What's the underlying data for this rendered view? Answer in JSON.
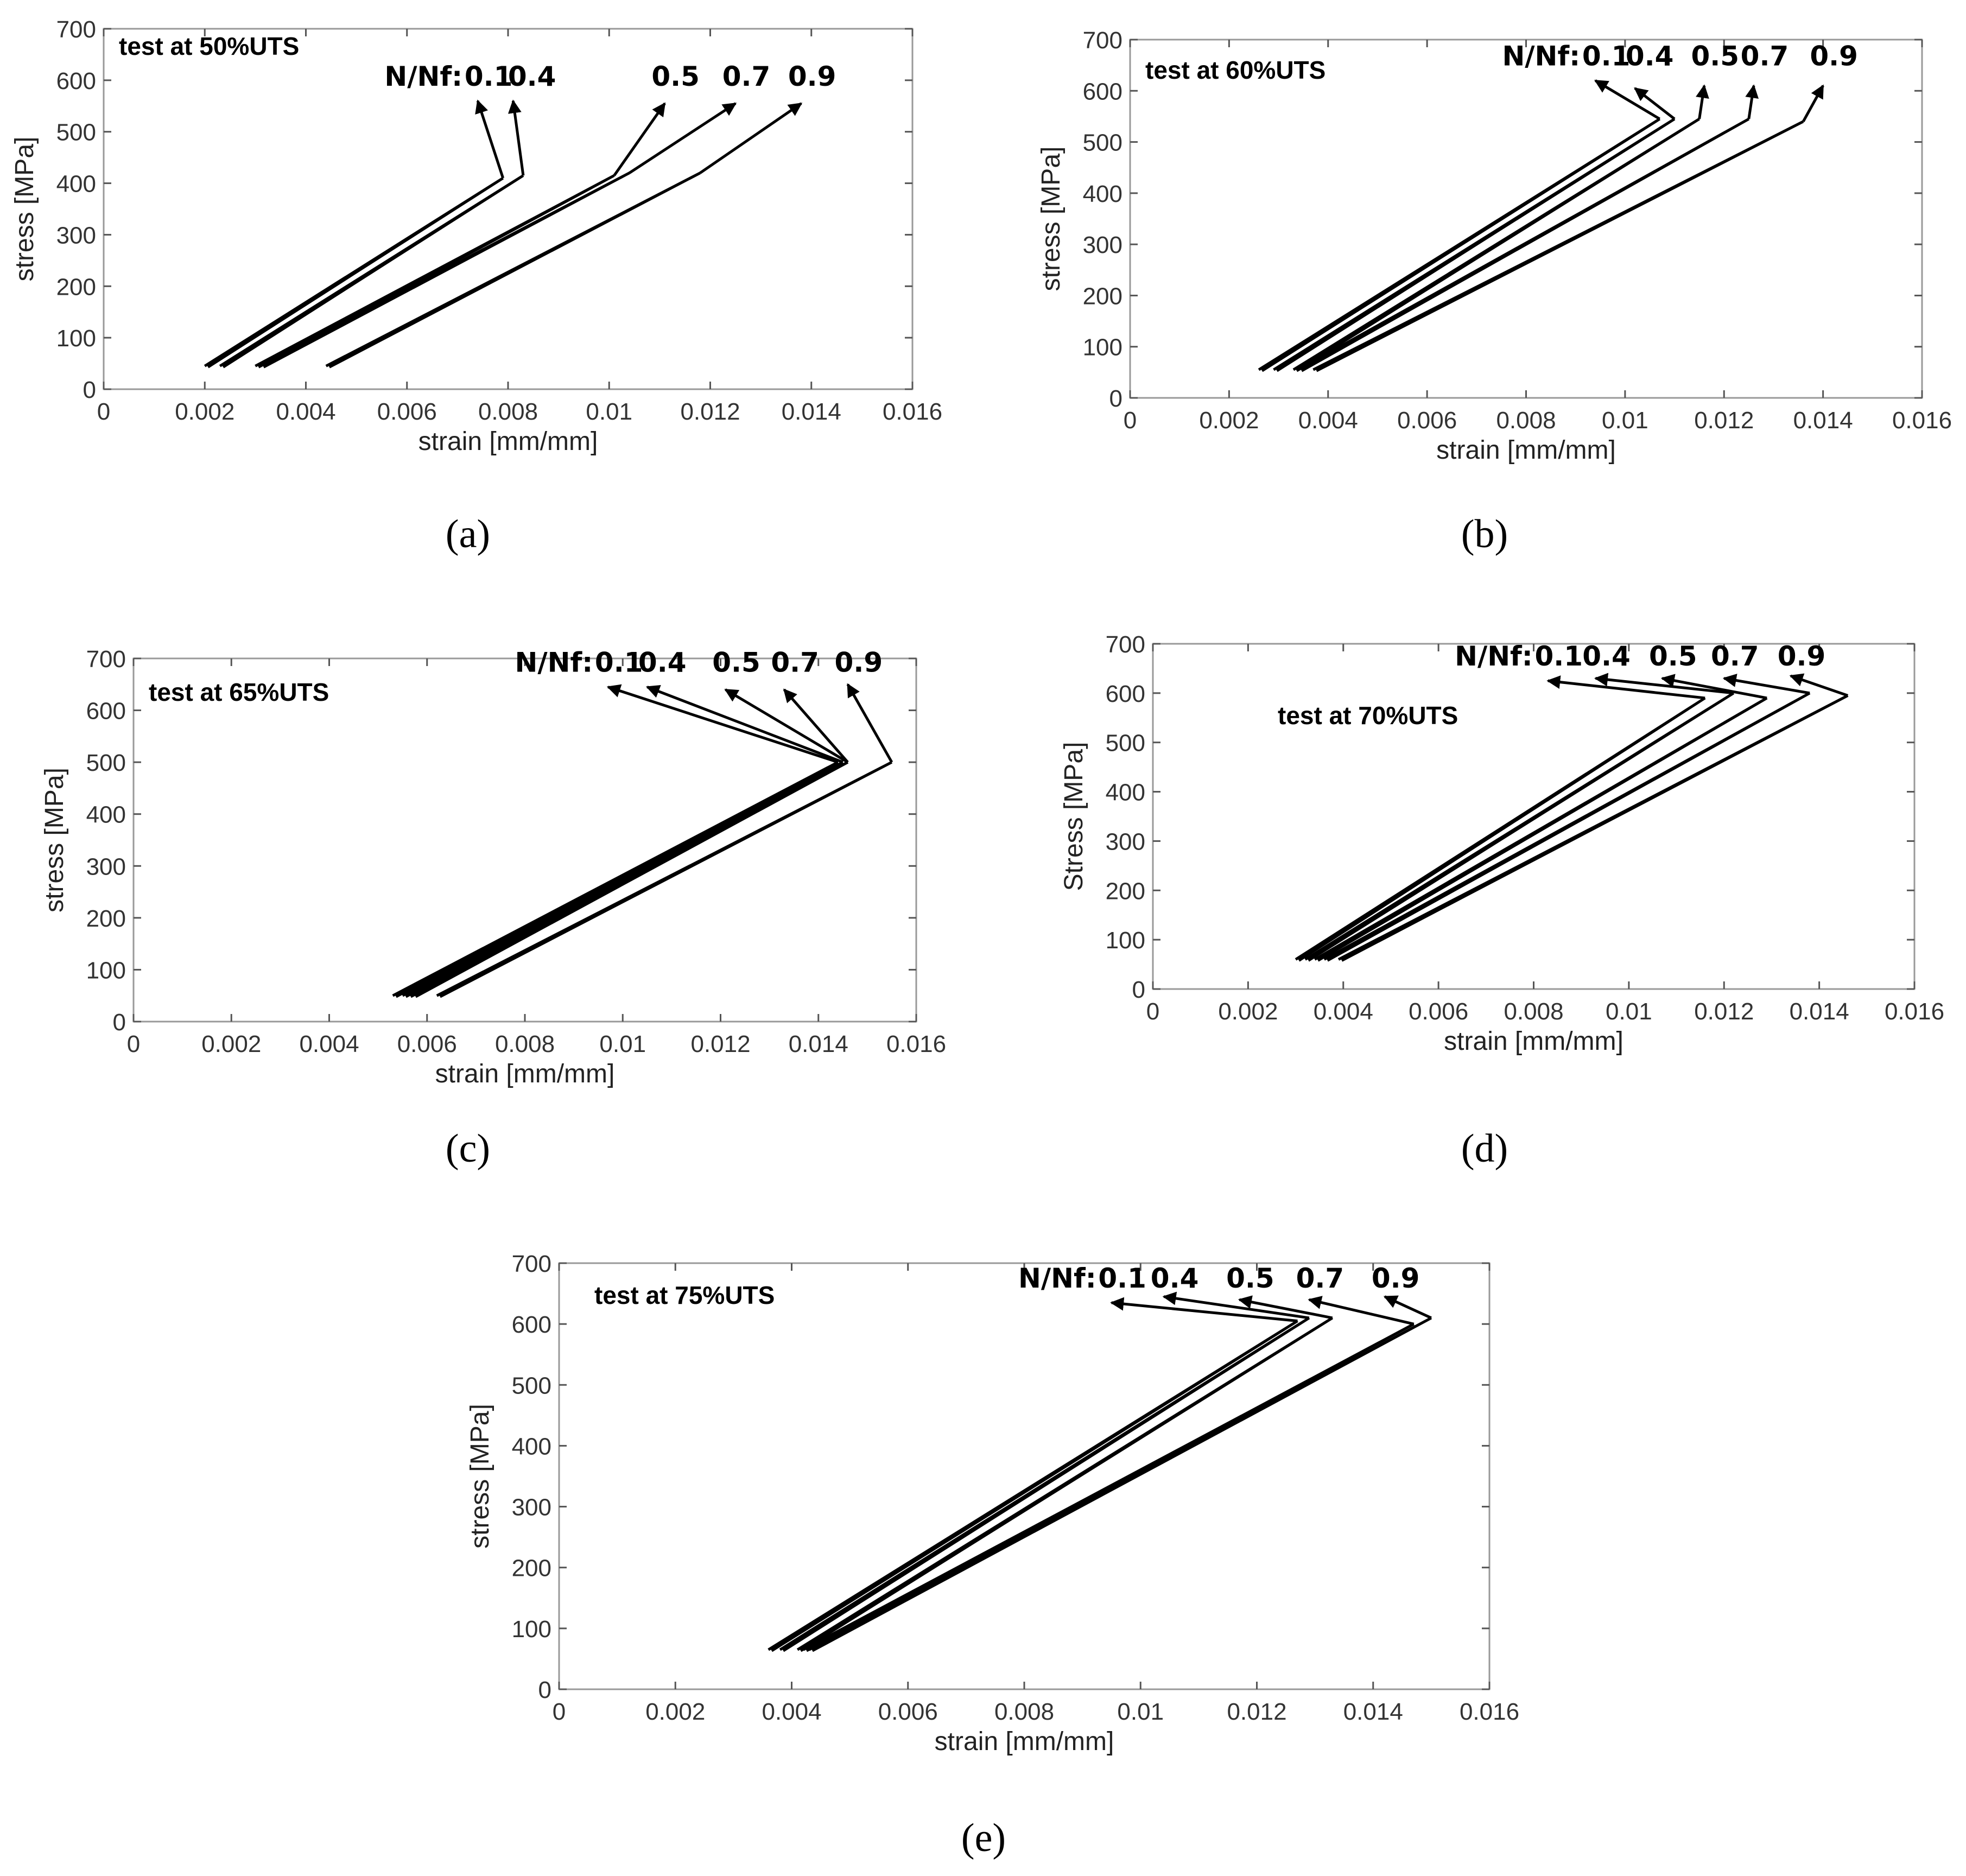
{
  "figure": {
    "panels": [
      "a",
      "b",
      "c",
      "d",
      "e"
    ]
  },
  "chart_data": [
    {
      "id": "a",
      "type": "line",
      "panel_label": "(a)",
      "annotation": "test at 50%UTS",
      "legend_prefix": "N/Nf:",
      "series_labels": [
        "0.1",
        "0.4",
        "0.5",
        "0.7",
        "0.9"
      ],
      "xlabel": "strain [mm/mm]",
      "ylabel": "stress [MPa]",
      "xlim": [
        0,
        0.016
      ],
      "ylim": [
        0,
        700
      ],
      "xticks": [
        "0",
        "0.002",
        "0.004",
        "0.006",
        "0.008",
        "0.01",
        "0.012",
        "0.014",
        "0.016"
      ],
      "yticks": [
        "0",
        "100",
        "200",
        "300",
        "400",
        "500",
        "600",
        "700"
      ],
      "series": [
        {
          "name": "0.1",
          "min_point": [
            0.002,
            45
          ],
          "peak_point": [
            0.0079,
            410
          ],
          "label_point": [
            0.0074,
            560
          ]
        },
        {
          "name": "0.4",
          "min_point": [
            0.0023,
            45
          ],
          "peak_point": [
            0.0083,
            415
          ],
          "label_point": [
            0.0081,
            560
          ]
        },
        {
          "name": "0.5",
          "min_point": [
            0.003,
            45
          ],
          "peak_point": [
            0.0101,
            415
          ],
          "label_point": [
            0.0111,
            555
          ]
        },
        {
          "name": "0.7",
          "min_point": [
            0.0031,
            45
          ],
          "peak_point": [
            0.0104,
            420
          ],
          "label_point": [
            0.0125,
            555
          ]
        },
        {
          "name": "0.9",
          "min_point": [
            0.0044,
            45
          ],
          "peak_point": [
            0.0118,
            420
          ],
          "label_point": [
            0.0138,
            555
          ]
        }
      ]
    },
    {
      "id": "b",
      "type": "line",
      "panel_label": "(b)",
      "annotation": "test at 60%UTS",
      "legend_prefix": "N/Nf:",
      "series_labels": [
        "0.1",
        "0.4",
        "0.5",
        "0.7",
        "0.9"
      ],
      "xlabel": "strain [mm/mm]",
      "ylabel": "stress [MPa]",
      "xlim": [
        0,
        0.016
      ],
      "ylim": [
        0,
        700
      ],
      "xticks": [
        "0",
        "0.002",
        "0.004",
        "0.006",
        "0.008",
        "0.01",
        "0.012",
        "0.014",
        "0.016"
      ],
      "yticks": [
        "0",
        "100",
        "200",
        "300",
        "400",
        "500",
        "600",
        "700"
      ],
      "series": [
        {
          "name": "0.1",
          "min_point": [
            0.0026,
            55
          ],
          "peak_point": [
            0.0107,
            545
          ],
          "label_point": [
            0.0094,
            620
          ]
        },
        {
          "name": "0.4",
          "min_point": [
            0.0029,
            55
          ],
          "peak_point": [
            0.011,
            545
          ],
          "label_point": [
            0.0102,
            605
          ]
        },
        {
          "name": "0.5",
          "min_point": [
            0.0033,
            55
          ],
          "peak_point": [
            0.0115,
            545
          ],
          "label_point": [
            0.0116,
            610
          ]
        },
        {
          "name": "0.7",
          "min_point": [
            0.0034,
            55
          ],
          "peak_point": [
            0.0125,
            545
          ],
          "label_point": [
            0.0126,
            610
          ]
        },
        {
          "name": "0.9",
          "min_point": [
            0.0037,
            55
          ],
          "peak_point": [
            0.0136,
            540
          ],
          "label_point": [
            0.014,
            610
          ]
        }
      ]
    },
    {
      "id": "c",
      "type": "line",
      "panel_label": "(c)",
      "annotation": "test at 65%UTS",
      "legend_prefix": "N/Nf:",
      "series_labels": [
        "0.1",
        "0.4",
        "0.5",
        "0.7",
        "0.9"
      ],
      "xlabel": "strain [mm/mm]",
      "ylabel": "stress [MPa]",
      "xlim": [
        0,
        0.016
      ],
      "ylim": [
        0,
        700
      ],
      "xticks": [
        "0",
        "0.002",
        "0.004",
        "0.006",
        "0.008",
        "0.01",
        "0.012",
        "0.014",
        "0.016"
      ],
      "yticks": [
        "0",
        "100",
        "200",
        "300",
        "400",
        "500",
        "600",
        "700"
      ],
      "series": [
        {
          "name": "0.1",
          "min_point": [
            0.0053,
            50
          ],
          "peak_point": [
            0.0144,
            500
          ],
          "label_point": [
            0.0097,
            645
          ]
        },
        {
          "name": "0.4",
          "min_point": [
            0.0055,
            50
          ],
          "peak_point": [
            0.0145,
            500
          ],
          "label_point": [
            0.0105,
            645
          ]
        },
        {
          "name": "0.5",
          "min_point": [
            0.0056,
            50
          ],
          "peak_point": [
            0.0146,
            500
          ],
          "label_point": [
            0.0121,
            640
          ]
        },
        {
          "name": "0.7",
          "min_point": [
            0.0057,
            50
          ],
          "peak_point": [
            0.0146,
            500
          ],
          "label_point": [
            0.0133,
            640
          ]
        },
        {
          "name": "0.9",
          "min_point": [
            0.0062,
            50
          ],
          "peak_point": [
            0.0155,
            500
          ],
          "label_point": [
            0.0146,
            650
          ]
        }
      ]
    },
    {
      "id": "d",
      "type": "line",
      "panel_label": "(d)",
      "annotation": "test at 70%UTS",
      "legend_prefix": "N/Nf:",
      "series_labels": [
        "0.1",
        "0.4",
        "0.5",
        "0.7",
        "0.9"
      ],
      "xlabel": "strain [mm/mm]",
      "ylabel": "Stress [MPa]",
      "xlim": [
        0,
        0.016
      ],
      "ylim": [
        0,
        700
      ],
      "xticks": [
        "0",
        "0.002",
        "0.004",
        "0.006",
        "0.008",
        "0.01",
        "0.012",
        "0.014",
        "0.016"
      ],
      "yticks": [
        "0",
        "100",
        "200",
        "300",
        "400",
        "500",
        "600",
        "700"
      ],
      "series": [
        {
          "name": "0.1",
          "min_point": [
            0.003,
            60
          ],
          "peak_point": [
            0.0116,
            590
          ],
          "label_point": [
            0.0083,
            625
          ]
        },
        {
          "name": "0.4",
          "min_point": [
            0.0032,
            60
          ],
          "peak_point": [
            0.0122,
            600
          ],
          "label_point": [
            0.0093,
            630
          ]
        },
        {
          "name": "0.5",
          "min_point": [
            0.0034,
            60
          ],
          "peak_point": [
            0.0129,
            590
          ],
          "label_point": [
            0.0107,
            630
          ]
        },
        {
          "name": "0.7",
          "min_point": [
            0.0036,
            60
          ],
          "peak_point": [
            0.0138,
            600
          ],
          "label_point": [
            0.012,
            630
          ]
        },
        {
          "name": "0.9",
          "min_point": [
            0.0039,
            60
          ],
          "peak_point": [
            0.0146,
            595
          ],
          "label_point": [
            0.0134,
            635
          ]
        }
      ]
    },
    {
      "id": "e",
      "type": "line",
      "panel_label": "(e)",
      "annotation": "test at 75%UTS",
      "legend_prefix": "N/Nf:",
      "series_labels": [
        "0.1",
        "0.4",
        "0.5",
        "0.7",
        "0.9"
      ],
      "xlabel": "strain [mm/mm]",
      "ylabel": "stress [MPa]",
      "xlim": [
        0,
        0.016
      ],
      "ylim": [
        0,
        700
      ],
      "xticks": [
        "0",
        "0.002",
        "0.004",
        "0.006",
        "0.008",
        "0.01",
        "0.012",
        "0.014",
        "0.016"
      ],
      "yticks": [
        "0",
        "100",
        "200",
        "300",
        "400",
        "500",
        "600",
        "700"
      ],
      "series": [
        {
          "name": "0.1",
          "min_point": [
            0.0036,
            65
          ],
          "peak_point": [
            0.0127,
            605
          ],
          "label_point": [
            0.0095,
            635
          ]
        },
        {
          "name": "0.4",
          "min_point": [
            0.0038,
            65
          ],
          "peak_point": [
            0.0129,
            610
          ],
          "label_point": [
            0.0104,
            645
          ]
        },
        {
          "name": "0.5",
          "min_point": [
            0.0041,
            65
          ],
          "peak_point": [
            0.0133,
            610
          ],
          "label_point": [
            0.0117,
            640
          ]
        },
        {
          "name": "0.7",
          "min_point": [
            0.0042,
            65
          ],
          "peak_point": [
            0.0147,
            600
          ],
          "label_point": [
            0.0129,
            640
          ]
        },
        {
          "name": "0.9",
          "min_point": [
            0.0043,
            65
          ],
          "peak_point": [
            0.015,
            610
          ],
          "label_point": [
            0.0142,
            645
          ]
        }
      ]
    }
  ]
}
